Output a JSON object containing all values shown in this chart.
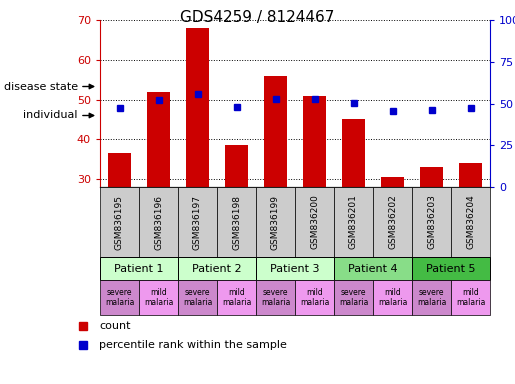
{
  "title": "GDS4259 / 8124467",
  "samples": [
    "GSM836195",
    "GSM836196",
    "GSM836197",
    "GSM836198",
    "GSM836199",
    "GSM836200",
    "GSM836201",
    "GSM836202",
    "GSM836203",
    "GSM836204"
  ],
  "counts": [
    36.5,
    52.0,
    68.0,
    38.5,
    56.0,
    51.0,
    45.0,
    30.5,
    33.0,
    34.0
  ],
  "percentiles": [
    47.5,
    52.0,
    55.5,
    48.0,
    52.5,
    52.5,
    50.5,
    45.5,
    46.0,
    47.5
  ],
  "ylim_left": [
    28,
    70
  ],
  "ylim_right": [
    0,
    100
  ],
  "yticks_left": [
    30,
    40,
    50,
    60,
    70
  ],
  "ytick_labels_right": [
    "0",
    "25",
    "50",
    "75",
    "100%"
  ],
  "yticks_right": [
    0,
    25,
    50,
    75,
    100
  ],
  "bar_color": "#cc0000",
  "dot_color": "#0000cc",
  "patients": [
    {
      "label": "Patient 1",
      "cols": [
        0,
        1
      ],
      "color": "#ccffcc"
    },
    {
      "label": "Patient 2",
      "cols": [
        2,
        3
      ],
      "color": "#ccffcc"
    },
    {
      "label": "Patient 3",
      "cols": [
        4,
        5
      ],
      "color": "#ccffcc"
    },
    {
      "label": "Patient 4",
      "cols": [
        6,
        7
      ],
      "color": "#88dd88"
    },
    {
      "label": "Patient 5",
      "cols": [
        8,
        9
      ],
      "color": "#44bb44"
    }
  ],
  "disease_states": [
    {
      "label": "severe\nmalaria",
      "col": 0,
      "color": "#cc88cc"
    },
    {
      "label": "mild\nmalaria",
      "col": 1,
      "color": "#ee99ee"
    },
    {
      "label": "severe\nmalaria",
      "col": 2,
      "color": "#cc88cc"
    },
    {
      "label": "mild\nmalaria",
      "col": 3,
      "color": "#ee99ee"
    },
    {
      "label": "severe\nmalaria",
      "col": 4,
      "color": "#cc88cc"
    },
    {
      "label": "mild\nmalaria",
      "col": 5,
      "color": "#ee99ee"
    },
    {
      "label": "severe\nmalaria",
      "col": 6,
      "color": "#cc88cc"
    },
    {
      "label": "mild\nmalaria",
      "col": 7,
      "color": "#ee99ee"
    },
    {
      "label": "severe\nmalaria",
      "col": 8,
      "color": "#cc88cc"
    },
    {
      "label": "mild\nmalaria",
      "col": 9,
      "color": "#ee99ee"
    }
  ],
  "legend_count_label": "count",
  "legend_pct_label": "percentile rank within the sample",
  "individual_label": "individual",
  "disease_state_label": "disease state",
  "sample_bg_color": "#cccccc",
  "tick_color_left": "#cc0000",
  "tick_color_right": "#0000cc"
}
